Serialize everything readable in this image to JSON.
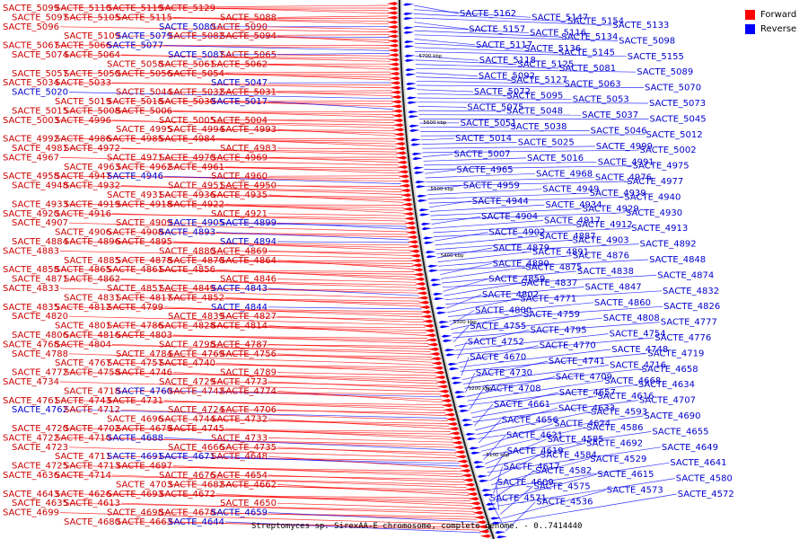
{
  "caption": "Streptomyces sp. SirexAA-E chromosome, complete genome. - 0..7414440",
  "legend": {
    "forward_label": "Forward",
    "reverse_label": "Reverse"
  },
  "colors": {
    "forward": "#ff0000",
    "reverse": "#0000ff",
    "forward_text": "#cc0000",
    "reverse_text": "#0000cc"
  },
  "scale_labels": [
    "5700 kbp",
    "5600 kbp",
    "5500 kbp",
    "5400 kbp",
    "5300 kbp",
    "5200 kbp",
    "5100 kbp"
  ],
  "left_labels": [
    {
      "t": "SACTE_5099",
      "s": "f"
    },
    {
      "t": "SACTE_5110",
      "s": "f"
    },
    {
      "t": "SACTE_5119",
      "s": "f"
    },
    {
      "t": "SACTE_5129",
      "s": "f"
    },
    {
      "t": "SACTE_5088",
      "s": "f"
    },
    {
      "t": "SACTE_5097",
      "s": "f"
    },
    {
      "t": "SACTE_5105",
      "s": "f"
    },
    {
      "t": "SACTE_5115",
      "s": "f"
    },
    {
      "t": "SACTE_5080",
      "s": "r"
    },
    {
      "t": "SACTE_5090",
      "s": "f"
    },
    {
      "t": "SACTE_5096",
      "s": "f"
    },
    {
      "t": "SACTE_5109",
      "s": "f"
    },
    {
      "t": "SACTE_5079",
      "s": "r"
    },
    {
      "t": "SACTE_5082",
      "s": "f"
    },
    {
      "t": "SACTE_5094",
      "s": "f"
    },
    {
      "t": "SACTE_5067",
      "s": "f"
    },
    {
      "t": "SACTE_5066",
      "s": "f"
    },
    {
      "t": "SACTE_5077",
      "s": "r"
    },
    {
      "t": "SACTE_5087",
      "s": "r"
    },
    {
      "t": "SACTE_5065",
      "s": "f"
    },
    {
      "t": "SACTE_5074",
      "s": "f"
    },
    {
      "t": "SACTE_5064",
      "s": "f"
    },
    {
      "t": "SACTE_5058",
      "s": "f"
    },
    {
      "t": "SACTE_5061",
      "s": "f"
    },
    {
      "t": "SACTE_5062",
      "s": "f"
    },
    {
      "t": "SACTE_5057",
      "s": "f"
    },
    {
      "t": "SACTE_5050",
      "s": "f"
    },
    {
      "t": "SACTE_5056",
      "s": "f"
    },
    {
      "t": "SACTE_5054",
      "s": "f"
    },
    {
      "t": "SACTE_5047",
      "s": "r"
    },
    {
      "t": "SACTE_5034",
      "s": "f"
    },
    {
      "t": "SACTE_5033",
      "s": "f"
    },
    {
      "t": "SACTE_5044",
      "s": "f"
    },
    {
      "t": "SACTE_5032",
      "s": "f"
    },
    {
      "t": "SACTE_5031",
      "s": "f"
    },
    {
      "t": "SACTE_5020",
      "s": "r"
    },
    {
      "t": "SACTE_5019",
      "s": "f"
    },
    {
      "t": "SACTE_5018",
      "s": "f"
    },
    {
      "t": "SACTE_5030",
      "s": "f"
    },
    {
      "t": "SACTE_5017",
      "s": "r"
    },
    {
      "t": "SACTE_5015",
      "s": "f"
    },
    {
      "t": "SACTE_5008",
      "s": "f"
    },
    {
      "t": "SACTE_5006",
      "s": "f"
    },
    {
      "t": "SACTE_5005",
      "s": "f"
    },
    {
      "t": "SACTE_5004",
      "s": "f"
    },
    {
      "t": "SACTE_5003",
      "s": "f"
    },
    {
      "t": "SACTE_4996",
      "s": "f"
    },
    {
      "t": "SACTE_4995",
      "s": "f"
    },
    {
      "t": "SACTE_4994",
      "s": "f"
    },
    {
      "t": "SACTE_4993",
      "s": "f"
    },
    {
      "t": "SACTE_4992",
      "s": "f"
    },
    {
      "t": "SACTE_4986",
      "s": "f"
    },
    {
      "t": "SACTE_4985",
      "s": "f"
    },
    {
      "t": "SACTE_4984",
      "s": "f"
    },
    {
      "t": "SACTE_4983",
      "s": "f"
    },
    {
      "t": "SACTE_4981",
      "s": "f"
    },
    {
      "t": "SACTE_4972",
      "s": "f"
    },
    {
      "t": "SACTE_4971",
      "s": "f"
    },
    {
      "t": "SACTE_4970",
      "s": "f"
    },
    {
      "t": "SACTE_4969",
      "s": "f"
    },
    {
      "t": "SACTE_4967",
      "s": "f"
    },
    {
      "t": "SACTE_4963",
      "s": "f"
    },
    {
      "t": "SACTE_4962",
      "s": "f"
    },
    {
      "t": "SACTE_4961",
      "s": "f"
    },
    {
      "t": "SACTE_4960",
      "s": "f"
    },
    {
      "t": "SACTE_4958",
      "s": "f"
    },
    {
      "t": "SACTE_4947",
      "s": "f"
    },
    {
      "t": "SACTE_4946",
      "s": "r"
    },
    {
      "t": "SACTE_4951",
      "s": "f"
    },
    {
      "t": "SACTE_4950",
      "s": "f"
    },
    {
      "t": "SACTE_4948",
      "s": "f"
    },
    {
      "t": "SACTE_4932",
      "s": "f"
    },
    {
      "t": "SACTE_4931",
      "s": "f"
    },
    {
      "t": "SACTE_4936",
      "s": "f"
    },
    {
      "t": "SACTE_4935",
      "s": "f"
    },
    {
      "t": "SACTE_4933",
      "s": "f"
    },
    {
      "t": "SACTE_4919",
      "s": "f"
    },
    {
      "t": "SACTE_4918",
      "s": "f"
    },
    {
      "t": "SACTE_4922",
      "s": "f"
    },
    {
      "t": "SACTE_4921",
      "s": "f"
    },
    {
      "t": "SACTE_4920",
      "s": "f"
    },
    {
      "t": "SACTE_4916",
      "s": "f"
    },
    {
      "t": "SACTE_4909",
      "s": "f"
    },
    {
      "t": "SACTE_4905",
      "s": "r"
    },
    {
      "t": "SACTE_4899",
      "s": "r"
    },
    {
      "t": "SACTE_4907",
      "s": "f"
    },
    {
      "t": "SACTE_4906",
      "s": "f"
    },
    {
      "t": "SACTE_4908",
      "s": "f"
    },
    {
      "t": "SACTE_4893",
      "s": "r"
    },
    {
      "t": "SACTE_4894",
      "s": "r"
    },
    {
      "t": "SACTE_4884",
      "s": "f"
    },
    {
      "t": "SACTE_4896",
      "s": "f"
    },
    {
      "t": "SACTE_4895",
      "s": "f"
    },
    {
      "t": "SACTE_4880",
      "s": "f"
    },
    {
      "t": "SACTE_4869",
      "s": "f"
    },
    {
      "t": "SACTE_4883",
      "s": "f"
    },
    {
      "t": "SACTE_4885",
      "s": "f"
    },
    {
      "t": "SACTE_4878",
      "s": "f"
    },
    {
      "t": "SACTE_4870",
      "s": "f"
    },
    {
      "t": "SACTE_4864",
      "s": "f"
    },
    {
      "t": "SACTE_4858",
      "s": "f"
    },
    {
      "t": "SACTE_4865",
      "s": "f"
    },
    {
      "t": "SACTE_4861",
      "s": "f"
    },
    {
      "t": "SACTE_4856",
      "s": "f"
    },
    {
      "t": "SACTE_4846",
      "s": "f"
    },
    {
      "t": "SACTE_4871",
      "s": "f"
    },
    {
      "t": "SACTE_4862",
      "s": "f"
    },
    {
      "t": "SACTE_4857",
      "s": "f"
    },
    {
      "t": "SACTE_4849",
      "s": "f"
    },
    {
      "t": "SACTE_4843",
      "s": "r"
    },
    {
      "t": "SACTE_4833",
      "s": "f"
    },
    {
      "t": "SACTE_4831",
      "s": "f"
    },
    {
      "t": "SACTE_4817",
      "s": "f"
    },
    {
      "t": "SACTE_4852",
      "s": "f"
    },
    {
      "t": "SACTE_4844",
      "s": "r"
    },
    {
      "t": "SACTE_4835",
      "s": "f"
    },
    {
      "t": "SACTE_4812",
      "s": "f"
    },
    {
      "t": "SACTE_4799",
      "s": "f"
    },
    {
      "t": "SACTE_4839",
      "s": "f"
    },
    {
      "t": "SACTE_4827",
      "s": "f"
    },
    {
      "t": "SACTE_4820",
      "s": "f"
    },
    {
      "t": "SACTE_4801",
      "s": "f"
    },
    {
      "t": "SACTE_4786",
      "s": "f"
    },
    {
      "t": "SACTE_4828",
      "s": "f"
    },
    {
      "t": "SACTE_4814",
      "s": "f"
    },
    {
      "t": "SACTE_4806",
      "s": "f"
    },
    {
      "t": "SACTE_4816",
      "s": "f"
    },
    {
      "t": "SACTE_4803",
      "s": "f"
    },
    {
      "t": "SACTE_4798",
      "s": "f"
    },
    {
      "t": "SACTE_4787",
      "s": "f"
    },
    {
      "t": "SACTE_4768",
      "s": "f"
    },
    {
      "t": "SACTE_4804",
      "s": "f"
    },
    {
      "t": "SACTE_4784",
      "s": "f"
    },
    {
      "t": "SACTE_4769",
      "s": "f"
    },
    {
      "t": "SACTE_4756",
      "s": "f"
    },
    {
      "t": "SACTE_4788",
      "s": "f"
    },
    {
      "t": "SACTE_4767",
      "s": "f"
    },
    {
      "t": "SACTE_4757",
      "s": "f"
    },
    {
      "t": "SACTE_4740",
      "s": "f"
    },
    {
      "t": "SACTE_4789",
      "s": "f"
    },
    {
      "t": "SACTE_4772",
      "s": "f"
    },
    {
      "t": "SACTE_4758",
      "s": "f"
    },
    {
      "t": "SACTE_4746",
      "s": "f"
    },
    {
      "t": "SACTE_4729",
      "s": "f"
    },
    {
      "t": "SACTE_4773",
      "s": "f"
    },
    {
      "t": "SACTE_4734",
      "s": "f"
    },
    {
      "t": "SACTE_4718",
      "s": "f"
    },
    {
      "t": "SACTE_4760",
      "s": "r"
    },
    {
      "t": "SACTE_4742",
      "s": "f"
    },
    {
      "t": "SACTE_4774",
      "s": "f"
    },
    {
      "t": "SACTE_4761",
      "s": "f"
    },
    {
      "t": "SACTE_4743",
      "s": "f"
    },
    {
      "t": "SACTE_4731",
      "s": "f"
    },
    {
      "t": "SACTE_4724",
      "s": "f"
    },
    {
      "t": "SACTE_4706",
      "s": "f"
    },
    {
      "t": "SACTE_4762",
      "s": "r"
    },
    {
      "t": "SACTE_4712",
      "s": "f"
    },
    {
      "t": "SACTE_4696",
      "s": "f"
    },
    {
      "t": "SACTE_4744",
      "s": "f"
    },
    {
      "t": "SACTE_4732",
      "s": "f"
    },
    {
      "t": "SACTE_4720",
      "s": "f"
    },
    {
      "t": "SACTE_4702",
      "s": "f"
    },
    {
      "t": "SACTE_4679",
      "s": "f"
    },
    {
      "t": "SACTE_4745",
      "s": "f"
    },
    {
      "t": "SACTE_4733",
      "s": "f"
    },
    {
      "t": "SACTE_4722",
      "s": "f"
    },
    {
      "t": "SACTE_4710",
      "s": "f"
    },
    {
      "t": "SACTE_4688",
      "s": "r"
    },
    {
      "t": "SACTE_4666",
      "s": "f"
    },
    {
      "t": "SACTE_4735",
      "s": "f"
    },
    {
      "t": "SACTE_4723",
      "s": "f"
    },
    {
      "t": "SACTE_4711",
      "s": "f"
    },
    {
      "t": "SACTE_4691",
      "s": "r"
    },
    {
      "t": "SACTE_4671",
      "s": "r"
    },
    {
      "t": "SACTE_4648",
      "s": "f"
    },
    {
      "t": "SACTE_4725",
      "s": "f"
    },
    {
      "t": "SACTE_4713",
      "s": "f"
    },
    {
      "t": "SACTE_4697",
      "s": "f"
    },
    {
      "t": "SACTE_4676",
      "s": "f"
    },
    {
      "t": "SACTE_4654",
      "s": "f"
    },
    {
      "t": "SACTE_4636",
      "s": "f"
    },
    {
      "t": "SACTE_4714",
      "s": "f"
    },
    {
      "t": "SACTE_4703",
      "s": "f"
    },
    {
      "t": "SACTE_4682",
      "s": "f"
    },
    {
      "t": "SACTE_4662",
      "s": "f"
    },
    {
      "t": "SACTE_4643",
      "s": "f"
    },
    {
      "t": "SACTE_4626",
      "s": "f"
    },
    {
      "t": "SACTE_4693",
      "s": "f"
    },
    {
      "t": "SACTE_4672",
      "s": "f"
    },
    {
      "t": "SACTE_4650",
      "s": "f"
    },
    {
      "t": "SACTE_4635",
      "s": "f"
    },
    {
      "t": "SACTE_4613",
      "s": "f"
    },
    {
      "t": "SACTE_4698",
      "s": "f"
    },
    {
      "t": "SACTE_4678",
      "s": "f"
    },
    {
      "t": "SACTE_4659",
      "s": "r"
    },
    {
      "t": "SACTE_4699",
      "s": "f"
    },
    {
      "t": "SACTE_4680",
      "s": "f"
    },
    {
      "t": "SACTE_4663",
      "s": "f"
    },
    {
      "t": "SACTE_4644",
      "s": "r"
    }
  ],
  "right_labels": [
    "SACTE_5162",
    "SACTE_5147",
    "SACTE_5154",
    "SACTE_5133",
    "SACTE_5157",
    "SACTE_5116",
    "SACTE_5134",
    "SACTE_5098",
    "SACTE_5117",
    "SACTE_5136",
    "SACTE_5145",
    "SACTE_5155",
    "SACTE_5118",
    "SACTE_5125",
    "SACTE_5081",
    "SACTE_5089",
    "SACTE_5092",
    "SACTE_5127",
    "SACTE_5063",
    "SACTE_5070",
    "SACTE_5072",
    "SACTE_5095",
    "SACTE_5053",
    "SACTE_5073",
    "SACTE_5075",
    "SACTE_5048",
    "SACTE_5037",
    "SACTE_5045",
    "SACTE_5051",
    "SACTE_5038",
    "SACTE_5046",
    "SACTE_5012",
    "SACTE_5014",
    "SACTE_5025",
    "SACTE_4999",
    "SACTE_5002",
    "SACTE_5007",
    "SACTE_5016",
    "SACTE_4991",
    "SACTE_4975",
    "SACTE_4965",
    "SACTE_4968",
    "SACTE_4976",
    "SACTE_4977",
    "SACTE_4959",
    "SACTE_4949",
    "SACTE_4939",
    "SACTE_4940",
    "SACTE_4944",
    "SACTE_4934",
    "SACTE_4929",
    "SACTE_4930",
    "SACTE_4904",
    "SACTE_4917",
    "SACTE_4912",
    "SACTE_4913",
    "SACTE_4902",
    "SACTE_4887",
    "SACTE_4903",
    "SACTE_4892",
    "SACTE_4879",
    "SACTE_4891",
    "SACTE_4876",
    "SACTE_4848",
    "SACTE_4890",
    "SACTE_4875",
    "SACTE_4838",
    "SACTE_4874",
    "SACTE_4859",
    "SACTE_4837",
    "SACTE_4847",
    "SACTE_4832",
    "SACTE_4802",
    "SACTE_4771",
    "SACTE_4860",
    "SACTE_4826",
    "SACTE_4800",
    "SACTE_4759",
    "SACTE_4808",
    "SACTE_4777",
    "SACTE_4755",
    "SACTE_4795",
    "SACTE_4754",
    "SACTE_4776",
    "SACTE_4752",
    "SACTE_4770",
    "SACTE_4748",
    "SACTE_4719",
    "SACTE_4670",
    "SACTE_4741",
    "SACTE_4716",
    "SACTE_4658",
    "SACTE_4730",
    "SACTE_4709",
    "SACTE_4668",
    "SACTE_4634",
    "SACTE_4708",
    "SACTE_4657",
    "SACTE_4616",
    "SACTE_4707",
    "SACTE_4661",
    "SACTE_4633",
    "SACTE_4593",
    "SACTE_4690",
    "SACTE_4656",
    "SACTE_4624",
    "SACTE_4586",
    "SACTE_4655",
    "SACTE_4621",
    "SACTE_4585",
    "SACTE_4692",
    "SACTE_4649",
    "SACTE_4619",
    "SACTE_4584",
    "SACTE_4529",
    "SACTE_4641",
    "SACTE_4617",
    "SACTE_4582",
    "SACTE_4615",
    "SACTE_4580",
    "SACTE_4609",
    "SACTE_4575",
    "SACTE_4573",
    "SACTE_4572",
    "SACTE_4571",
    "SACTE_4536"
  ]
}
